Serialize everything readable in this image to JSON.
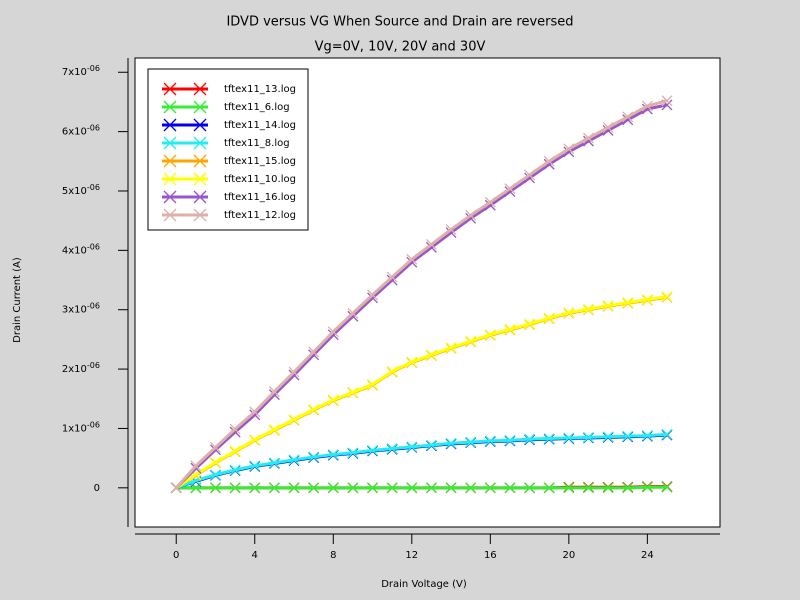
{
  "chart_data": {
    "type": "line",
    "title": "IDVD versus VG When Source and Drain are reversed",
    "subtitle": "Vg=0V, 10V, 20V and 30V",
    "x_label": "Drain Voltage (V)",
    "y_label": "Drain Current (A)",
    "x": [
      0,
      1,
      2,
      3,
      4,
      5,
      6,
      7,
      8,
      9,
      10,
      11,
      12,
      13,
      14,
      15,
      16,
      17,
      18,
      19,
      20,
      21,
      22,
      23,
      24,
      25
    ],
    "xlim": [
      -2.1,
      27.7
    ],
    "ylim": [
      -6.6e-07,
      7.24e-06
    ],
    "xticks": [
      0,
      4,
      8,
      12,
      16,
      20,
      24
    ],
    "yticks": [
      0,
      {
        "value": 1e-06,
        "label": "1x10-06"
      },
      {
        "value": 2e-06,
        "label": "2x10-06"
      },
      {
        "value": 3e-06,
        "label": "3x10-06"
      },
      {
        "value": 4e-06,
        "label": "4x10-06"
      },
      {
        "value": 5e-06,
        "label": "5x10-06"
      },
      {
        "value": 6e-06,
        "label": "6x10-06"
      },
      {
        "value": 7e-06,
        "label": "7x10-06"
      }
    ],
    "legend": "upper left",
    "series": [
      {
        "name": "tftex11_13.log",
        "color": "#ff0000",
        "values": [
          0,
          0,
          0,
          0,
          0,
          0,
          0,
          0,
          0,
          0,
          0,
          0,
          0,
          0,
          0,
          0,
          0,
          0,
          0,
          0,
          1e-08,
          1e-08,
          1e-08,
          1e-08,
          2e-08,
          2e-08
        ]
      },
      {
        "name": "tftex11_6.log",
        "color": "#33ee33",
        "values": [
          0,
          0,
          0,
          0,
          0,
          0,
          0,
          0,
          0,
          0,
          0,
          0,
          0,
          0,
          0,
          0,
          0,
          0,
          0,
          0,
          0,
          0,
          0,
          0,
          1e-08,
          1e-08
        ]
      },
      {
        "name": "tftex11_14.log",
        "color": "#0000ee",
        "values": [
          0,
          1.1e-07,
          2.1e-07,
          2.9e-07,
          3.6e-07,
          4.1e-07,
          4.6e-07,
          5.1e-07,
          5.5e-07,
          5.8e-07,
          6.2e-07,
          6.5e-07,
          6.8e-07,
          7.1e-07,
          7.4e-07,
          7.6e-07,
          7.8e-07,
          7.9e-07,
          8.1e-07,
          8.2e-07,
          8.3e-07,
          8.4e-07,
          8.5e-07,
          8.6e-07,
          8.7e-07,
          8.9e-07
        ]
      },
      {
        "name": "tftex11_8.log",
        "color": "#22eeee",
        "values": [
          0,
          1.2e-07,
          2.2e-07,
          3e-07,
          3.7e-07,
          4.2e-07,
          4.7e-07,
          5.2e-07,
          5.6e-07,
          5.9e-07,
          6.3e-07,
          6.6e-07,
          6.9e-07,
          7.2e-07,
          7.5e-07,
          7.7e-07,
          7.9e-07,
          8e-07,
          8.2e-07,
          8.3e-07,
          8.4e-07,
          8.5e-07,
          8.6e-07,
          8.7e-07,
          8.8e-07,
          9e-07
        ]
      },
      {
        "name": "tftex11_15.log",
        "color": "#ffa500",
        "values": [
          0,
          2.1e-07,
          4.2e-07,
          6.1e-07,
          8e-07,
          9.7e-07,
          1.14e-06,
          1.31e-06,
          1.47e-06,
          1.6e-06,
          1.73e-06,
          1.95e-06,
          2.11e-06,
          2.23e-06,
          2.35e-06,
          2.46e-06,
          2.57e-06,
          2.66e-06,
          2.75e-06,
          2.85e-06,
          2.94e-06,
          3e-06,
          3.06e-06,
          3.11e-06,
          3.16e-06,
          3.21e-06
        ]
      },
      {
        "name": "tftex11_10.log",
        "color": "#ffff00",
        "values": [
          0,
          2.2e-07,
          4.3e-07,
          6.2e-07,
          8.1e-07,
          9.8e-07,
          1.15e-06,
          1.32e-06,
          1.48e-06,
          1.61e-06,
          1.74e-06,
          1.96e-06,
          2.12e-06,
          2.24e-06,
          2.36e-06,
          2.47e-06,
          2.58e-06,
          2.67e-06,
          2.76e-06,
          2.86e-06,
          2.95e-06,
          3.01e-06,
          3.07e-06,
          3.12e-06,
          3.17e-06,
          3.22e-06
        ]
      },
      {
        "name": "tftex11_16.log",
        "color": "#9955cc",
        "values": [
          0,
          3.3e-07,
          6.4e-07,
          9.4e-07,
          1.23e-06,
          1.57e-06,
          1.9e-06,
          2.24e-06,
          2.58e-06,
          2.89e-06,
          3.2e-06,
          3.5e-06,
          3.8e-06,
          4.05e-06,
          4.3e-06,
          4.54e-06,
          4.76e-06,
          4.99e-06,
          5.22e-06,
          5.45e-06,
          5.66e-06,
          5.84e-06,
          6.02e-06,
          6.2e-06,
          6.38e-06,
          6.45e-06
        ]
      },
      {
        "name": "tftex11_12.log",
        "color": "#ddb0a8",
        "values": [
          0,
          3.7e-07,
          6.8e-07,
          9.9e-07,
          1.28e-06,
          1.62e-06,
          1.95e-06,
          2.29e-06,
          2.63e-06,
          2.94e-06,
          3.25e-06,
          3.55e-06,
          3.85e-06,
          4.1e-06,
          4.35e-06,
          4.59e-06,
          4.81e-06,
          5.04e-06,
          5.27e-06,
          5.5e-06,
          5.71e-06,
          5.89e-06,
          6.07e-06,
          6.25e-06,
          6.43e-06,
          6.52e-06
        ]
      }
    ]
  }
}
